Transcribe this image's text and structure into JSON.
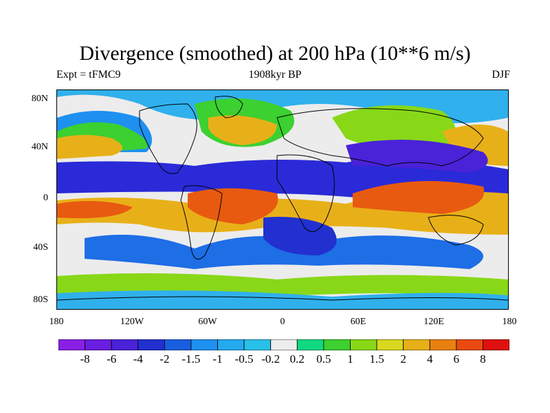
{
  "title": "Divergence (smoothed) at 200 hPa (10**6 m/s)",
  "left_label": "Expt = tFMC9",
  "center_label": "1908kyr BP",
  "right_label": "DJF",
  "lat_labels": [
    "80N",
    "40N",
    "0",
    "40S",
    "80S"
  ],
  "lon_labels": [
    "180",
    "120W",
    "60W",
    "0",
    "60E",
    "120E",
    "180"
  ],
  "colorbar": {
    "colors": [
      "#8a1fe6",
      "#6a1ee0",
      "#4a22d8",
      "#2230d0",
      "#1a5ee0",
      "#1e90f0",
      "#24a8ee",
      "#28c0e8",
      "#ececec",
      "#10d880",
      "#3cd030",
      "#88d818",
      "#d8d820",
      "#e8b018",
      "#e88010",
      "#e84a10",
      "#e01010"
    ],
    "labels": [
      "-8",
      "-6",
      "-4",
      "-2",
      "-1.5",
      "-1",
      "-0.5",
      "-0.2",
      "0.2",
      "0.5",
      "1",
      "1.5",
      "2",
      "4",
      "6",
      "8"
    ]
  },
  "field_colors": {
    "background": "#ececec",
    "strong_neg": "#2a2ad8",
    "mid_neg": "#1e6ee6",
    "weak_neg": "#30b0ec",
    "weak_pos": "#18d890",
    "mid_pos": "#4cd030",
    "warm": "#e8b018",
    "hot": "#e85a10",
    "coast": "#000000"
  }
}
